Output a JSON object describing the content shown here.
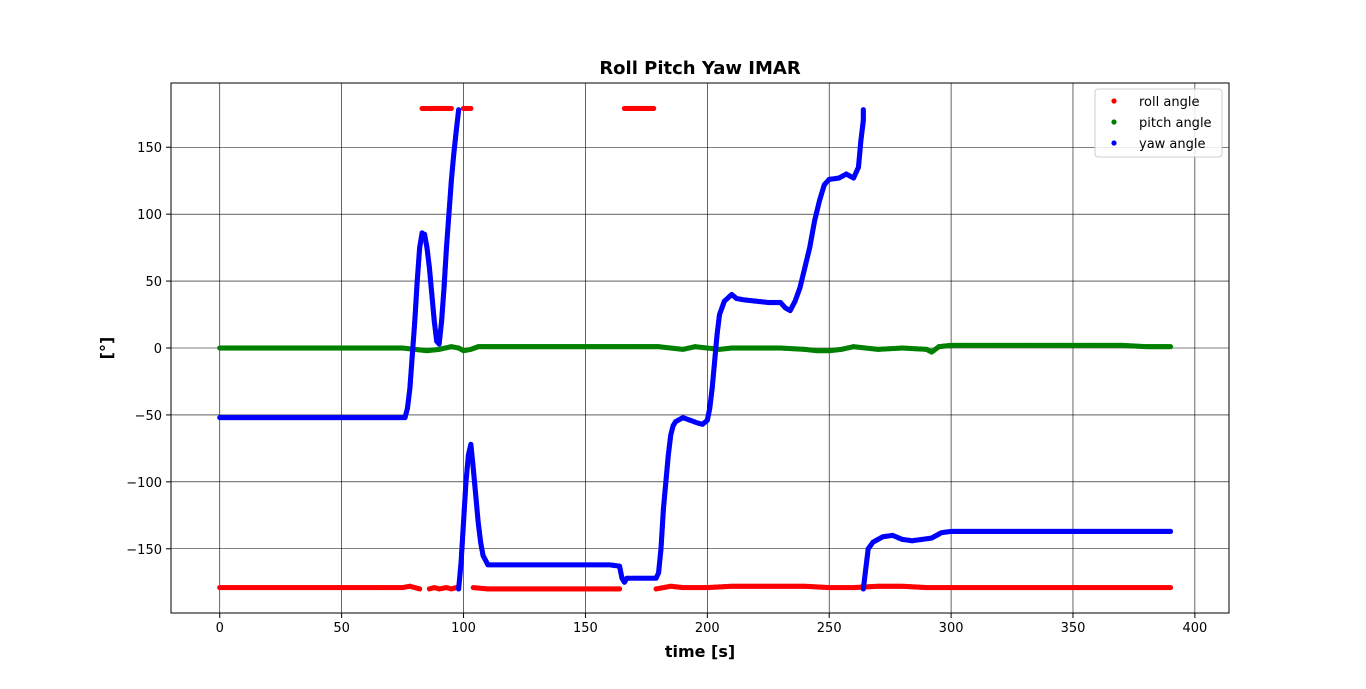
{
  "chart_data": {
    "type": "scatter",
    "title": "Roll Pitch Yaw IMAR",
    "xlabel": "time [s]",
    "ylabel": "[°]",
    "xlim": [
      -20,
      414
    ],
    "ylim": [
      -198,
      198
    ],
    "xticks": [
      0,
      50,
      100,
      150,
      200,
      250,
      300,
      350,
      400
    ],
    "yticks": [
      -150,
      -100,
      -50,
      0,
      50,
      100,
      150
    ],
    "grid": true,
    "legend_position": "top-right",
    "series": [
      {
        "name": "roll angle",
        "color": "#ff0000",
        "points": [
          [
            0,
            -179
          ],
          [
            20,
            -179
          ],
          [
            40,
            -179
          ],
          [
            60,
            -179
          ],
          [
            75,
            -179
          ],
          [
            78,
            -178
          ],
          [
            80,
            -179
          ],
          [
            82,
            -180
          ],
          [
            83,
            179
          ],
          [
            85,
            179
          ],
          [
            87,
            179
          ],
          [
            90,
            179
          ],
          [
            93,
            179
          ],
          [
            95,
            179
          ],
          [
            86,
            -180
          ],
          [
            88,
            -179
          ],
          [
            90,
            -180
          ],
          [
            93,
            -179
          ],
          [
            95,
            -180
          ],
          [
            97,
            -179
          ],
          [
            100,
            179
          ],
          [
            102,
            179
          ],
          [
            103,
            179
          ],
          [
            104,
            -179
          ],
          [
            110,
            -180
          ],
          [
            130,
            -180
          ],
          [
            150,
            -180
          ],
          [
            160,
            -180
          ],
          [
            164,
            -180
          ],
          [
            166,
            179
          ],
          [
            170,
            179
          ],
          [
            175,
            179
          ],
          [
            178,
            179
          ],
          [
            179,
            -180
          ],
          [
            182,
            -179
          ],
          [
            185,
            -178
          ],
          [
            190,
            -179
          ],
          [
            200,
            -179
          ],
          [
            210,
            -178
          ],
          [
            220,
            -178
          ],
          [
            230,
            -178
          ],
          [
            240,
            -178
          ],
          [
            250,
            -179
          ],
          [
            260,
            -179
          ],
          [
            270,
            -178
          ],
          [
            280,
            -178
          ],
          [
            290,
            -179
          ],
          [
            300,
            -179
          ],
          [
            320,
            -179
          ],
          [
            340,
            -179
          ],
          [
            360,
            -179
          ],
          [
            380,
            -179
          ],
          [
            390,
            -179
          ]
        ]
      },
      {
        "name": "pitch angle",
        "color": "#008000",
        "points": [
          [
            0,
            0
          ],
          [
            20,
            0
          ],
          [
            40,
            0
          ],
          [
            60,
            0
          ],
          [
            75,
            0
          ],
          [
            80,
            -1
          ],
          [
            85,
            -2
          ],
          [
            90,
            -1
          ],
          [
            95,
            1
          ],
          [
            98,
            0
          ],
          [
            100,
            -2
          ],
          [
            103,
            -1
          ],
          [
            106,
            1
          ],
          [
            110,
            1
          ],
          [
            130,
            1
          ],
          [
            150,
            1
          ],
          [
            170,
            1
          ],
          [
            180,
            1
          ],
          [
            185,
            0
          ],
          [
            190,
            -1
          ],
          [
            195,
            1
          ],
          [
            200,
            0
          ],
          [
            205,
            -1
          ],
          [
            210,
            0
          ],
          [
            220,
            0
          ],
          [
            230,
            0
          ],
          [
            240,
            -1
          ],
          [
            245,
            -2
          ],
          [
            250,
            -2
          ],
          [
            255,
            -1
          ],
          [
            260,
            1
          ],
          [
            265,
            0
          ],
          [
            270,
            -1
          ],
          [
            280,
            0
          ],
          [
            290,
            -1
          ],
          [
            292,
            -3
          ],
          [
            295,
            1
          ],
          [
            300,
            2
          ],
          [
            320,
            2
          ],
          [
            340,
            2
          ],
          [
            360,
            2
          ],
          [
            370,
            2
          ],
          [
            380,
            1
          ],
          [
            390,
            1
          ]
        ]
      },
      {
        "name": "yaw angle",
        "color": "#0000ff",
        "points": [
          [
            0,
            -52
          ],
          [
            20,
            -52
          ],
          [
            40,
            -52
          ],
          [
            60,
            -52
          ],
          [
            76,
            -52
          ],
          [
            77,
            -45
          ],
          [
            78,
            -30
          ],
          [
            79,
            -5
          ],
          [
            80,
            20
          ],
          [
            81,
            50
          ],
          [
            82,
            75
          ],
          [
            83,
            86
          ],
          [
            84,
            85
          ],
          [
            85,
            75
          ],
          [
            86,
            60
          ],
          [
            87,
            40
          ],
          [
            88,
            20
          ],
          [
            89,
            5
          ],
          [
            90,
            3
          ],
          [
            91,
            20
          ],
          [
            92,
            45
          ],
          [
            93,
            75
          ],
          [
            94,
            100
          ],
          [
            95,
            125
          ],
          [
            96,
            145
          ],
          [
            97,
            162
          ],
          [
            98,
            178
          ],
          [
            98,
            -180
          ],
          [
            99,
            -160
          ],
          [
            100,
            -130
          ],
          [
            101,
            -100
          ],
          [
            102,
            -80
          ],
          [
            103,
            -72
          ],
          [
            104,
            -90
          ],
          [
            105,
            -110
          ],
          [
            106,
            -130
          ],
          [
            107,
            -145
          ],
          [
            108,
            -155
          ],
          [
            110,
            -162
          ],
          [
            120,
            -162
          ],
          [
            130,
            -162
          ],
          [
            140,
            -162
          ],
          [
            150,
            -162
          ],
          [
            160,
            -162
          ],
          [
            164,
            -163
          ],
          [
            165,
            -172
          ],
          [
            166,
            -175
          ],
          [
            167,
            -172
          ],
          [
            170,
            -172
          ],
          [
            175,
            -172
          ],
          [
            179,
            -172
          ],
          [
            180,
            -168
          ],
          [
            181,
            -150
          ],
          [
            182,
            -120
          ],
          [
            183,
            -100
          ],
          [
            184,
            -80
          ],
          [
            185,
            -65
          ],
          [
            186,
            -58
          ],
          [
            187,
            -55
          ],
          [
            190,
            -52
          ],
          [
            193,
            -54
          ],
          [
            196,
            -56
          ],
          [
            198,
            -57
          ],
          [
            200,
            -54
          ],
          [
            201,
            -45
          ],
          [
            202,
            -30
          ],
          [
            203,
            -10
          ],
          [
            204,
            10
          ],
          [
            205,
            25
          ],
          [
            207,
            35
          ],
          [
            210,
            40
          ],
          [
            212,
            37
          ],
          [
            215,
            36
          ],
          [
            220,
            35
          ],
          [
            225,
            34
          ],
          [
            230,
            34
          ],
          [
            232,
            30
          ],
          [
            234,
            28
          ],
          [
            236,
            35
          ],
          [
            238,
            45
          ],
          [
            240,
            60
          ],
          [
            242,
            75
          ],
          [
            244,
            95
          ],
          [
            246,
            110
          ],
          [
            248,
            122
          ],
          [
            250,
            126
          ],
          [
            254,
            127
          ],
          [
            257,
            130
          ],
          [
            260,
            127
          ],
          [
            262,
            135
          ],
          [
            263,
            155
          ],
          [
            264,
            170
          ],
          [
            264,
            178
          ],
          [
            264,
            -180
          ],
          [
            265,
            -165
          ],
          [
            266,
            -150
          ],
          [
            268,
            -145
          ],
          [
            272,
            -141
          ],
          [
            276,
            -140
          ],
          [
            280,
            -143
          ],
          [
            284,
            -144
          ],
          [
            288,
            -143
          ],
          [
            292,
            -142
          ],
          [
            296,
            -138
          ],
          [
            300,
            -137
          ],
          [
            320,
            -137
          ],
          [
            340,
            -137
          ],
          [
            360,
            -137
          ],
          [
            380,
            -137
          ],
          [
            390,
            -137
          ]
        ]
      }
    ]
  }
}
